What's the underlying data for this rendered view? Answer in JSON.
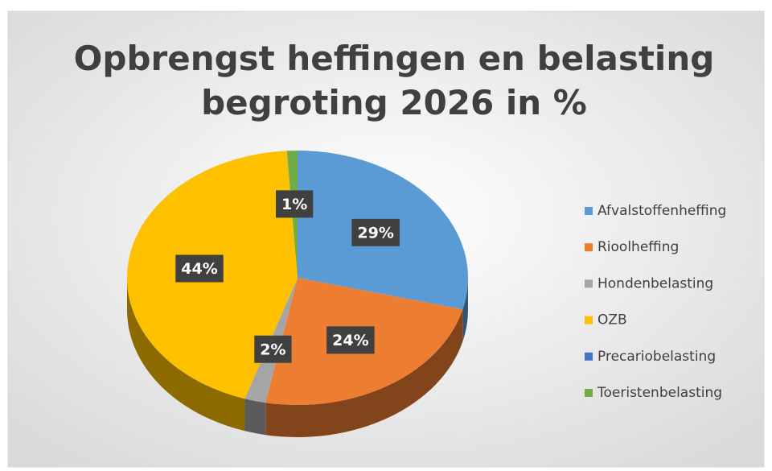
{
  "chart_data": {
    "type": "pie",
    "title": "Opbrengst heffingen en belasting begroting 2026 in %",
    "categories": [
      "Afvalstoffenheffing",
      "Rioolheffing",
      "Hondenbelasting",
      "OZB",
      "Precariobelasting",
      "Toeristenbelasting"
    ],
    "values": [
      29,
      24,
      2,
      44,
      0,
      1
    ],
    "value_labels": [
      "29%",
      "24%",
      "2%",
      "44%",
      null,
      "1%"
    ],
    "colors": [
      "#5b9bd5",
      "#ed7d31",
      "#a5a5a5",
      "#ffc000",
      "#4472c4",
      "#70ad47"
    ],
    "legend": "right"
  }
}
